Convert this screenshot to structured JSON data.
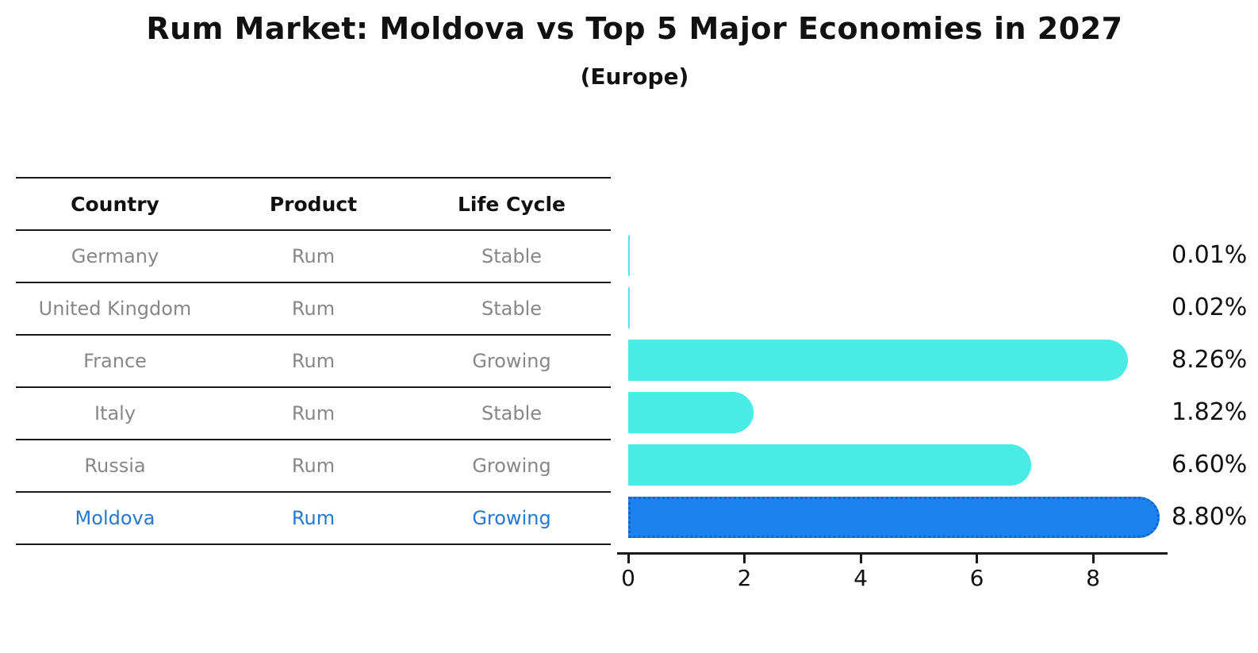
{
  "title": "Rum Market: Moldova vs Top 5 Major Economies in 2027",
  "subtitle": "(Europe)",
  "colors": {
    "bar_cyan": "#4aebe4",
    "bar_blue": "#1b82f0",
    "bar_blue_border": "#1565c8",
    "highlight_text_blue": "#2878ce",
    "table_text_gray": "#878787",
    "axis_black": "#1a1a1a"
  },
  "table": {
    "headers": [
      "Country",
      "Product",
      "Life Cycle"
    ],
    "rows": [
      {
        "country": "Germany",
        "product": "Rum",
        "life_cycle": "Stable",
        "highlight": false
      },
      {
        "country": "United Kingdom",
        "product": "Rum",
        "life_cycle": "Stable",
        "highlight": false
      },
      {
        "country": "France",
        "product": "Rum",
        "life_cycle": "Growing",
        "highlight": false
      },
      {
        "country": "Italy",
        "product": "Rum",
        "life_cycle": "Stable",
        "highlight": false
      },
      {
        "country": "Russia",
        "product": "Rum",
        "life_cycle": "Growing",
        "highlight": false
      },
      {
        "country": "Moldova",
        "product": "Rum",
        "life_cycle": "Growing",
        "highlight": true
      }
    ]
  },
  "chart_data": {
    "type": "bar",
    "orientation": "horizontal",
    "categories": [
      "Germany",
      "United Kingdom",
      "France",
      "Italy",
      "Russia",
      "Moldova"
    ],
    "values": [
      0.01,
      0.02,
      8.26,
      1.82,
      6.6,
      8.8
    ],
    "value_labels": [
      "0.01%",
      "0.02%",
      "8.26%",
      "1.82%",
      "6.60%",
      "8.80%"
    ],
    "x_ticks": [
      "0",
      "2",
      "4",
      "6",
      "8"
    ],
    "x_tick_values": [
      0,
      2,
      4,
      6,
      8
    ],
    "xlim": [
      0,
      9.3
    ],
    "highlight_category": "Moldova",
    "grid": false,
    "legend": false
  }
}
